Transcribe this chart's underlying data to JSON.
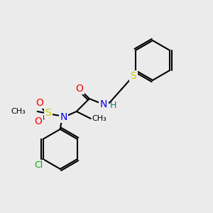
{
  "bg_color": "#ebebeb",
  "bond_color": "#000000",
  "atom_colors": {
    "O": "#ff0000",
    "N": "#0000ff",
    "S": "#cccc00",
    "Cl": "#00aa00",
    "C": "#000000",
    "H": "#008080"
  },
  "font_size": 9,
  "line_width": 1.5
}
